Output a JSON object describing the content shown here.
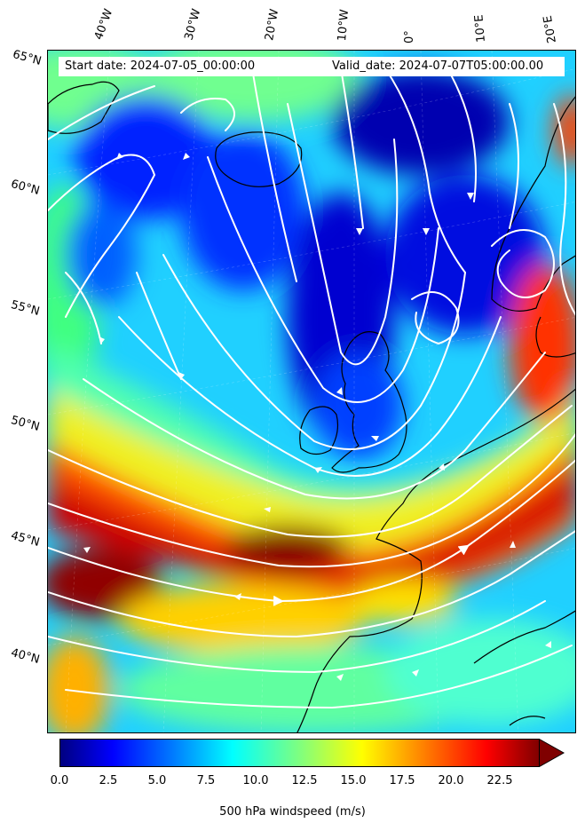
{
  "header": {
    "start_date": "Start date: 2024-07-05_00:00:00",
    "valid_date": "Valid_date: 2024-07-07T05:00:00.00"
  },
  "map": {
    "longitude_labels": [
      "40°W",
      "30°W",
      "20°W",
      "10°W",
      "0°",
      "10°E",
      "20°E"
    ],
    "latitude_labels": [
      "65°N",
      "60°N",
      "55°N",
      "50°N",
      "45°N",
      "40°N"
    ],
    "palette": [
      "#00007f",
      "#0000ff",
      "#007fff",
      "#00ffff",
      "#7fff7f",
      "#ffff00",
      "#ff7f00",
      "#ff0000",
      "#7f0000"
    ],
    "coastline_color": "#000000",
    "streamline_color": "#ffffff"
  },
  "colorbar": {
    "label": "500 hPa windspeed (m/s)",
    "ticks": [
      "0.0",
      "2.5",
      "5.0",
      "7.5",
      "10.0",
      "12.5",
      "15.0",
      "17.5",
      "20.0",
      "22.5"
    ],
    "range": [
      0,
      25
    ],
    "extend": "max"
  }
}
